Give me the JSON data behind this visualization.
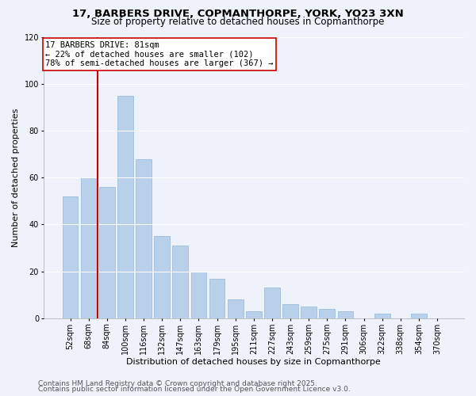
{
  "title": "17, BARBERS DRIVE, COPMANTHORPE, YORK, YO23 3XN",
  "subtitle": "Size of property relative to detached houses in Copmanthorpe",
  "xlabel": "Distribution of detached houses by size in Copmanthorpe",
  "ylabel": "Number of detached properties",
  "bar_color": "#b8d0ea",
  "bar_edge_color": "#90b8d8",
  "background_color": "#eef2fb",
  "grid_color": "#ffffff",
  "categories": [
    "52sqm",
    "68sqm",
    "84sqm",
    "100sqm",
    "116sqm",
    "132sqm",
    "147sqm",
    "163sqm",
    "179sqm",
    "195sqm",
    "211sqm",
    "227sqm",
    "243sqm",
    "259sqm",
    "275sqm",
    "291sqm",
    "306sqm",
    "322sqm",
    "338sqm",
    "354sqm",
    "370sqm"
  ],
  "values": [
    52,
    60,
    56,
    95,
    68,
    35,
    31,
    20,
    17,
    8,
    3,
    13,
    6,
    5,
    4,
    3,
    0,
    2,
    0,
    2,
    0
  ],
  "ylim": [
    0,
    120
  ],
  "yticks": [
    0,
    20,
    40,
    60,
    80,
    100,
    120
  ],
  "vline_color": "#cc0000",
  "vline_position": 1.5,
  "annotation_line1": "17 BARBERS DRIVE: 81sqm",
  "annotation_line2": "← 22% of detached houses are smaller (102)",
  "annotation_line3": "78% of semi-detached houses are larger (367) →",
  "footer_line1": "Contains HM Land Registry data © Crown copyright and database right 2025.",
  "footer_line2": "Contains public sector information licensed under the Open Government Licence v3.0.",
  "title_fontsize": 9.5,
  "subtitle_fontsize": 8.5,
  "axis_label_fontsize": 8,
  "tick_fontsize": 7,
  "annotation_fontsize": 7.5,
  "footer_fontsize": 6.5
}
